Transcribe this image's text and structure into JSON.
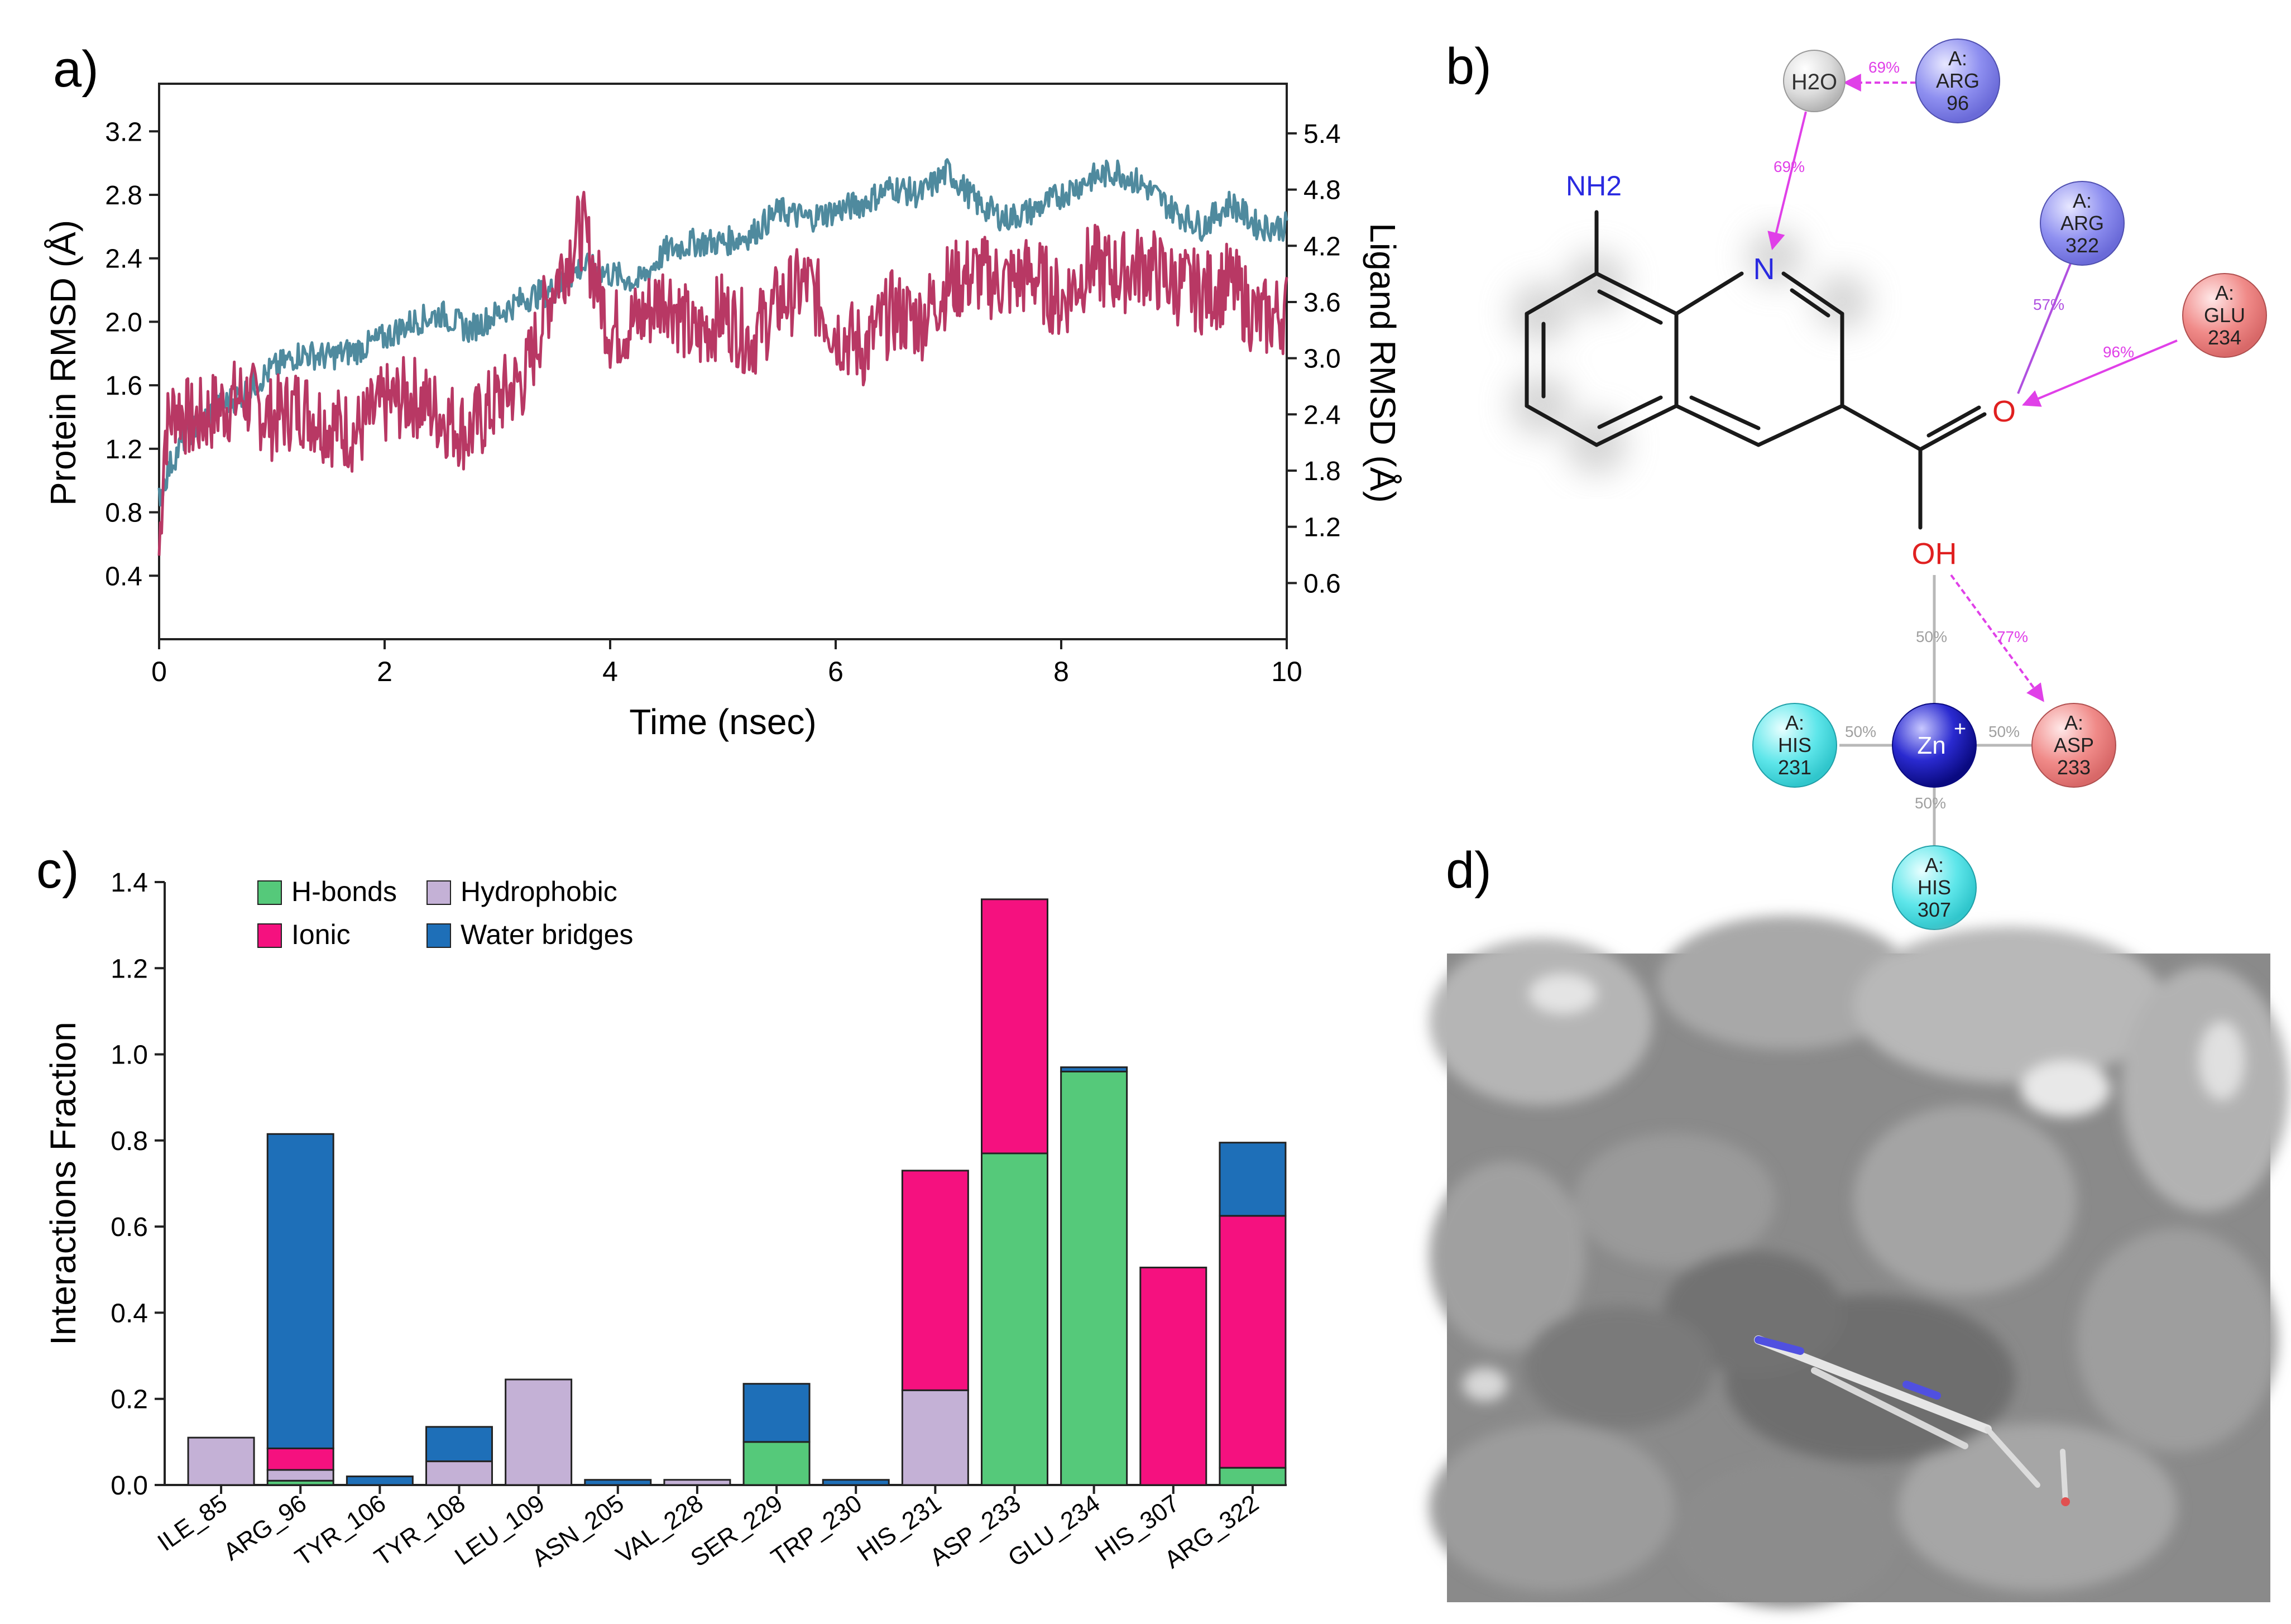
{
  "panel_labels": {
    "a": "a)",
    "b": "b)",
    "c": "c)",
    "d": "d)"
  },
  "chart_data": [
    {
      "type": "line",
      "panel": "a)",
      "title": "",
      "xlabel": "Time (nsec)",
      "ylabel": "Protein RMSD (Å)",
      "y2label": "Ligand RMSD (Å)",
      "xlim": [
        0,
        10
      ],
      "ylim": [
        0,
        3.5
      ],
      "y2lim": [
        0,
        5.93
      ],
      "xticks": [
        "0",
        "2",
        "4",
        "6",
        "8",
        "10"
      ],
      "yticks": [
        "0.4",
        "0.8",
        "1.2",
        "1.6",
        "2.0",
        "2.4",
        "2.8",
        "3.2"
      ],
      "y2ticks": [
        "0.6",
        "1.2",
        "1.8",
        "2.4",
        "3.0",
        "3.6",
        "4.2",
        "4.8",
        "5.4"
      ],
      "series": [
        {
          "name": "Protein RMSD",
          "axis": "left",
          "color": "#4f8a9e",
          "x": [
            0,
            0.1,
            0.25,
            0.5,
            0.75,
            1.0,
            1.25,
            1.5,
            1.75,
            2.0,
            2.25,
            2.5,
            2.75,
            3.0,
            3.25,
            3.5,
            3.75,
            4.0,
            4.25,
            4.5,
            4.75,
            5.0,
            5.25,
            5.5,
            5.75,
            6.0,
            6.25,
            6.5,
            6.75,
            7.0,
            7.25,
            7.5,
            7.75,
            8.0,
            8.25,
            8.5,
            8.75,
            9.0,
            9.25,
            9.5,
            9.75,
            10.0
          ],
          "values": [
            0.9,
            1.1,
            1.3,
            1.45,
            1.55,
            1.7,
            1.8,
            1.78,
            1.82,
            1.9,
            2.0,
            2.05,
            1.95,
            2.05,
            2.15,
            2.2,
            2.35,
            2.3,
            2.25,
            2.45,
            2.5,
            2.5,
            2.55,
            2.7,
            2.65,
            2.7,
            2.75,
            2.85,
            2.8,
            2.95,
            2.75,
            2.65,
            2.7,
            2.8,
            2.9,
            2.95,
            2.85,
            2.7,
            2.6,
            2.75,
            2.6,
            2.6
          ]
        },
        {
          "name": "Ligand RMSD",
          "axis": "right",
          "color": "#b83864",
          "x": [
            0,
            0.05,
            0.15,
            0.3,
            0.5,
            0.75,
            1.0,
            1.25,
            1.5,
            1.75,
            2.0,
            2.25,
            2.5,
            2.75,
            3.0,
            3.25,
            3.5,
            3.75,
            4.0,
            4.25,
            4.5,
            4.75,
            5.0,
            5.25,
            5.5,
            5.75,
            6.0,
            6.25,
            6.5,
            6.75,
            7.0,
            7.25,
            7.5,
            7.75,
            8.0,
            8.25,
            8.5,
            8.75,
            9.0,
            9.25,
            9.5,
            9.75,
            10.0
          ],
          "values": [
            0.9,
            2.2,
            2.5,
            2.3,
            2.45,
            2.6,
            2.35,
            2.5,
            2.3,
            2.2,
            2.5,
            2.6,
            2.4,
            2.2,
            2.55,
            2.8,
            3.8,
            4.4,
            3.3,
            3.4,
            3.7,
            3.2,
            3.5,
            3.2,
            3.6,
            3.8,
            3.3,
            3.1,
            3.5,
            3.4,
            3.8,
            3.9,
            3.8,
            3.9,
            3.6,
            4.0,
            3.9,
            4.0,
            3.8,
            3.7,
            3.8,
            3.4,
            3.5
          ]
        }
      ]
    },
    {
      "type": "bar",
      "panel": "c)",
      "title": "",
      "xlabel": "",
      "ylabel": "Interactions Fraction",
      "ylim": [
        0,
        1.4
      ],
      "yticks": [
        "0.0",
        "0.2",
        "0.4",
        "0.6",
        "0.8",
        "1.0",
        "1.2",
        "1.4"
      ],
      "categories": [
        "ILE_85",
        "ARG_96",
        "TYR_106",
        "TYR_108",
        "LEU_109",
        "ASN_205",
        "VAL_228",
        "SER_229",
        "TRP_230",
        "HIS_231",
        "ASP_233",
        "GLU_234",
        "HIS_307",
        "ARG_322"
      ],
      "series": [
        {
          "name": "H-bonds",
          "color": "#55c97a",
          "values": [
            0,
            0.01,
            0,
            0,
            0,
            0,
            0,
            0.1,
            0,
            0,
            0.77,
            0.96,
            0,
            0.04
          ]
        },
        {
          "name": "Hydrophobic",
          "color": "#c4b1d6",
          "values": [
            0.11,
            0.025,
            0,
            0.055,
            0.245,
            0,
            0.012,
            0,
            0,
            0.22,
            0,
            0,
            0,
            0
          ]
        },
        {
          "name": "Ionic",
          "color": "#f5117f",
          "values": [
            0,
            0.05,
            0,
            0,
            0,
            0,
            0,
            0,
            0,
            0.51,
            0.59,
            0,
            0.505,
            0.585
          ]
        },
        {
          "name": "Water bridges",
          "color": "#1e6fb8",
          "values": [
            0,
            0.73,
            0.02,
            0.08,
            0,
            0.012,
            0,
            0.135,
            0.012,
            0,
            0,
            0.01,
            0,
            0.17
          ]
        }
      ],
      "legend": [
        "H-bonds",
        "Hydrophobic",
        "Ionic",
        "Water bridges"
      ],
      "legend_position": "top-left"
    }
  ],
  "diagram_b": {
    "ligand_atoms": {
      "amine": "NH2",
      "ring_n": "N",
      "carbonyl_o": "O",
      "hydroxyl": "OH"
    },
    "water": "H2O",
    "zinc": "Zn",
    "residues": [
      {
        "id": "arg96",
        "chain": "A:",
        "name": "ARG",
        "num": "96",
        "color": "#8e8ff0"
      },
      {
        "id": "arg322",
        "chain": "A:",
        "name": "ARG",
        "num": "322",
        "color": "#8e8ff0"
      },
      {
        "id": "glu234",
        "chain": "A:",
        "name": "GLU",
        "num": "234",
        "color": "#f08a88"
      },
      {
        "id": "his231",
        "chain": "A:",
        "name": "HIS",
        "num": "231",
        "color": "#5ee6ea"
      },
      {
        "id": "asp233",
        "chain": "A:",
        "name": "ASP",
        "num": "233",
        "color": "#f08a88"
      },
      {
        "id": "his307",
        "chain": "A:",
        "name": "HIS",
        "num": "307",
        "color": "#5ee6ea"
      }
    ],
    "percent_labels": {
      "water_arg96": "69%",
      "water_n": "69%",
      "arg322_o": "57%",
      "glu234_o": "96%",
      "oh_zn": "50%",
      "oh_asp233": "77%",
      "his231_zn": "50%",
      "zn_asp233": "50%",
      "zn_his307": "50%"
    }
  }
}
